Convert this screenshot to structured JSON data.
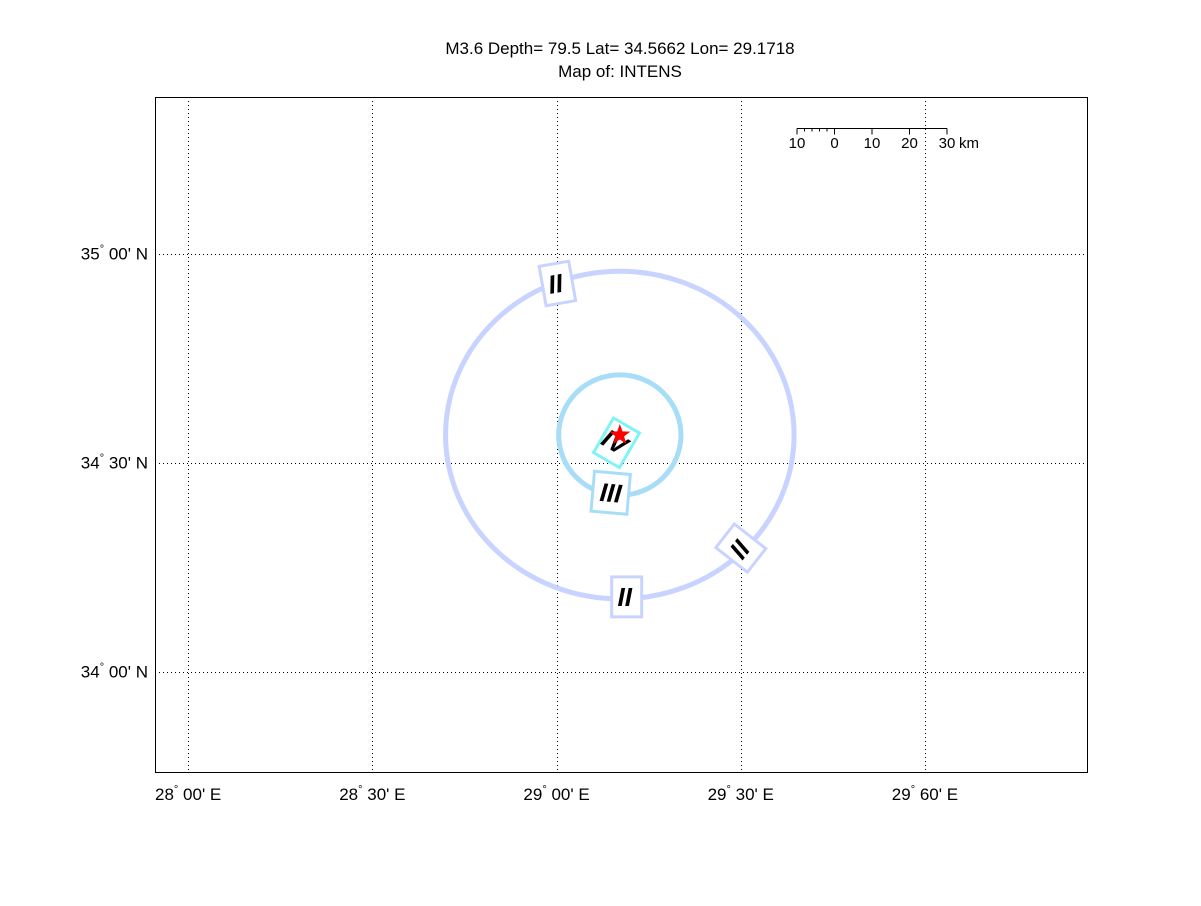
{
  "title": {
    "line1": "M3.6 Depth= 79.5 Lat= 34.5662 Lon= 29.1718",
    "line2": "Map of: INTENS"
  },
  "map": {
    "lon_range": [
      27.91,
      30.44
    ],
    "lat_range": [
      33.76,
      35.375
    ],
    "grid": "dotted",
    "x_ticks": [
      {
        "value": 28.0,
        "deg": "28",
        "min": "00' E"
      },
      {
        "value": 28.5,
        "deg": "28",
        "min": "30' E"
      },
      {
        "value": 29.0,
        "deg": "29",
        "min": "00' E"
      },
      {
        "value": 29.5,
        "deg": "29",
        "min": "30' E"
      },
      {
        "value": 30.0,
        "deg": "29",
        "min": "60' E"
      }
    ],
    "y_ticks": [
      {
        "value": 35.0,
        "deg": "35",
        "min": "00' N"
      },
      {
        "value": 34.5,
        "deg": "34",
        "min": "30' N"
      },
      {
        "value": 34.0,
        "deg": "34",
        "min": "00' N"
      }
    ],
    "epicenter": {
      "lon": 29.1718,
      "lat": 34.5662,
      "color": "#ff0000",
      "icon": "star-icon"
    },
    "contours": [
      {
        "intensity": "II",
        "lon_radius": 0.473,
        "lat_radius": 0.392,
        "color": "#c8d4ff"
      },
      {
        "intensity": "III",
        "lon_radius": 0.166,
        "lat_radius": 0.144,
        "color": "#a8ddf8"
      }
    ],
    "labels": [
      {
        "text": "II",
        "lon": 28.997,
        "lat": 34.928,
        "rotation": -10,
        "color": "#c8d4ff"
      },
      {
        "text": "IV",
        "lon": 29.158,
        "lat": 34.55,
        "rotation": 30,
        "color": "#80f4f4"
      },
      {
        "text": "III",
        "lon": 29.147,
        "lat": 34.428,
        "rotation": 5,
        "color": "#a8ddf8"
      },
      {
        "text": "II",
        "lon": 29.497,
        "lat": 34.292,
        "rotation": -52,
        "color": "#c8d4ff"
      },
      {
        "text": "II",
        "lon": 29.185,
        "lat": 34.179,
        "rotation": 0,
        "color": "#c8d4ff"
      }
    ],
    "scale_bar": {
      "labels": [
        "10",
        "0",
        "10",
        "20",
        "30"
      ],
      "unit": "km"
    }
  }
}
